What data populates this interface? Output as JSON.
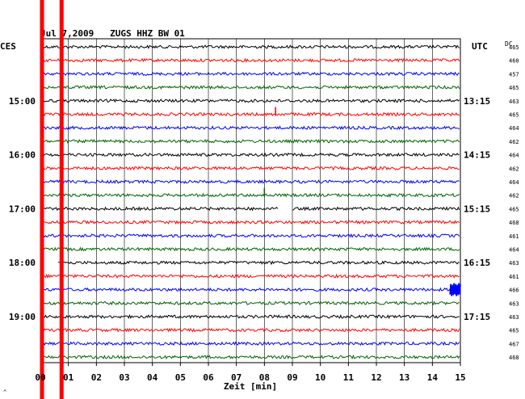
{
  "header": {
    "title": "Jul 7,2009   ZUGS HHZ BW 01",
    "left_zone": "CES",
    "right_zone": "UTC",
    "dc_label": "DC"
  },
  "footer": {
    "xlabel": "Zeit [min]",
    "corner_mark": "^"
  },
  "chart_data": {
    "type": "line",
    "title": "Jul 7,2009   ZUGS HHZ BW 01",
    "xlabel": "Zeit [min]",
    "x_ticks": [
      "00",
      "01",
      "02",
      "03",
      "04",
      "05",
      "06",
      "07",
      "08",
      "09",
      "10",
      "11",
      "12",
      "13",
      "14",
      "15"
    ],
    "xlim": [
      0,
      15
    ],
    "grid": true,
    "trace_colors": [
      "#000000",
      "#ff0000",
      "#0000ff",
      "#006400"
    ],
    "left_time_labels": [
      {
        "row": 4,
        "label": "15:00"
      },
      {
        "row": 8,
        "label": "16:00"
      },
      {
        "row": 12,
        "label": "17:00"
      },
      {
        "row": 16,
        "label": "18:00"
      },
      {
        "row": 20,
        "label": "19:00"
      }
    ],
    "right_time_labels": [
      {
        "row": 4,
        "label": "13:15"
      },
      {
        "row": 8,
        "label": "14:15"
      },
      {
        "row": 12,
        "label": "15:15"
      },
      {
        "row": 16,
        "label": "16:15"
      },
      {
        "row": 20,
        "label": "17:15"
      }
    ],
    "dc_values": [
      "465",
      "460",
      "457",
      "465",
      "463",
      "465",
      "464",
      "462",
      "464",
      "462",
      "464",
      "462",
      "465",
      "468",
      "461",
      "464",
      "463",
      "461",
      "466",
      "463",
      "463",
      "465",
      "467",
      "468"
    ],
    "trace_count": 24,
    "events": [
      {
        "row": 5,
        "minute": 8.4,
        "type": "spike"
      },
      {
        "row": 11,
        "minute": 8.0,
        "type": "spike"
      },
      {
        "row": 12,
        "minute_start": 8.5,
        "minute_end": 9.0,
        "type": "gap"
      },
      {
        "row": 16,
        "minute_start": 0.1,
        "minute_end": 0.6,
        "type": "gap"
      },
      {
        "row": 18,
        "minute": 14.8,
        "type": "burst"
      }
    ],
    "markers_minutes": [
      0.0,
      0.7
    ],
    "marker_color": "#ff0000"
  }
}
